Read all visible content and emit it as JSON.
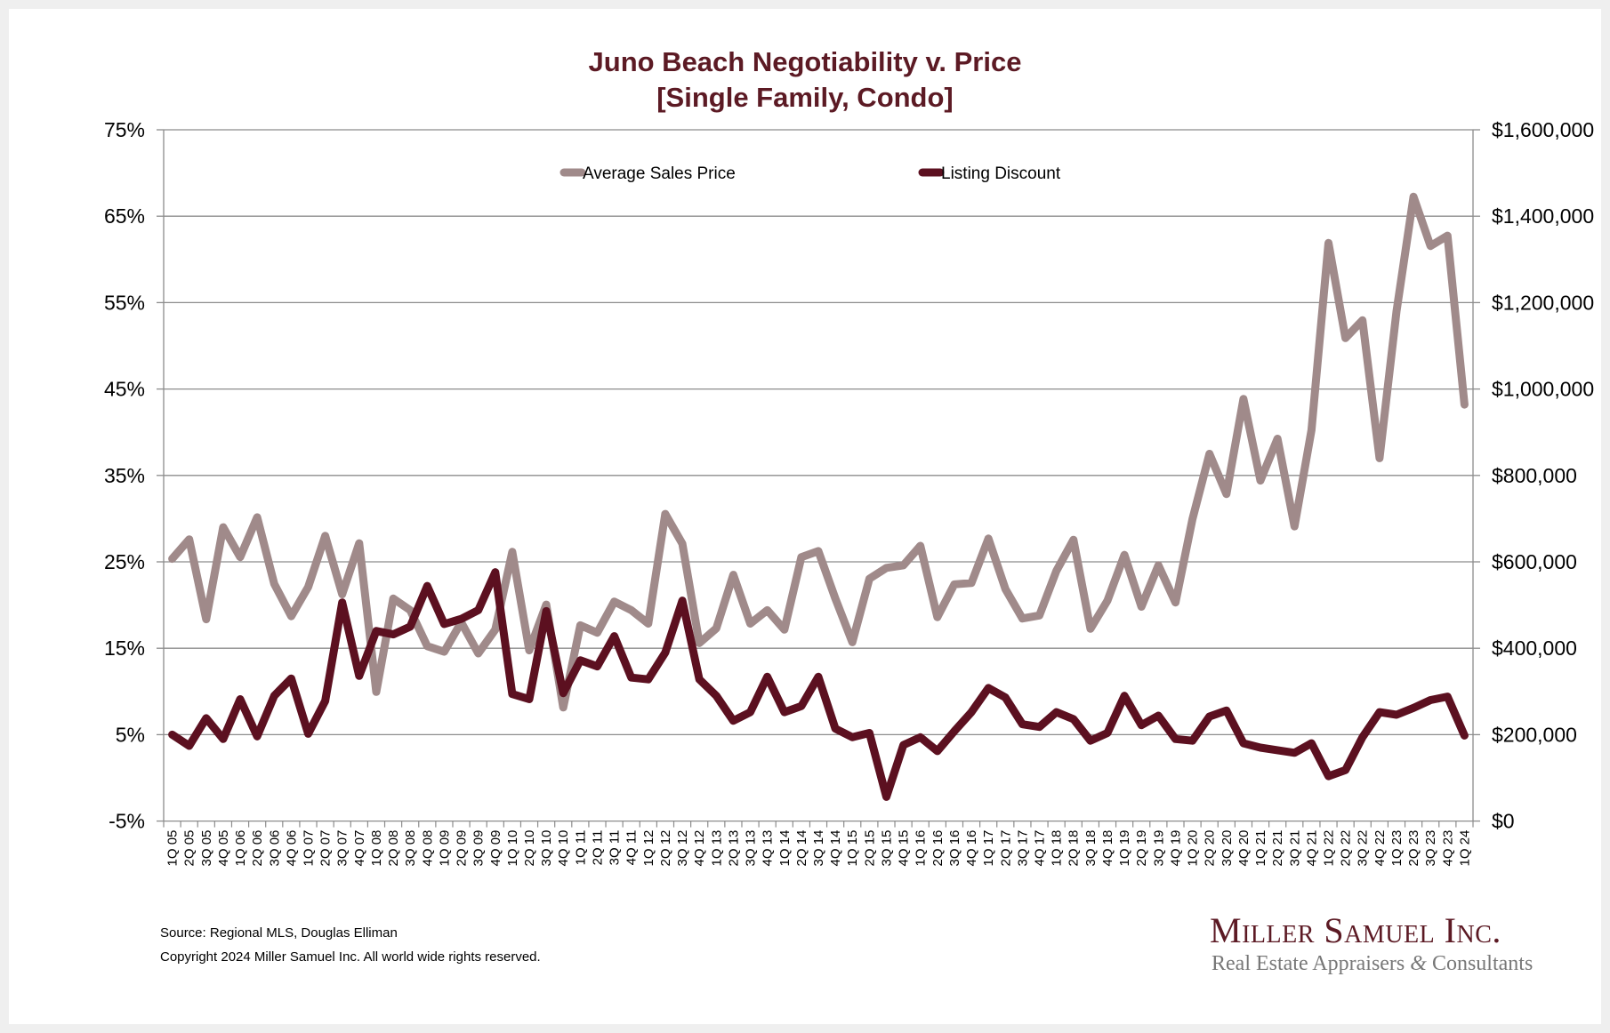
{
  "chart_data": {
    "type": "line",
    "title": "Juno Beach Negotiability v. Price",
    "subtitle": "[Single Family, Condo]",
    "xlabel": "",
    "ylabel_left": "",
    "ylabel_right": "",
    "categories": [
      "1Q 05",
      "2Q 05",
      "3Q 05",
      "4Q 05",
      "1Q 06",
      "2Q 06",
      "3Q 06",
      "4Q 06",
      "1Q 07",
      "2Q 07",
      "3Q 07",
      "4Q 07",
      "1Q 08",
      "2Q 08",
      "3Q 08",
      "4Q 08",
      "1Q 09",
      "2Q 09",
      "3Q 09",
      "4Q 09",
      "1Q 10",
      "2Q 10",
      "3Q 10",
      "4Q 10",
      "1Q 11",
      "2Q 11",
      "3Q 11",
      "4Q 11",
      "1Q 12",
      "2Q 12",
      "3Q 12",
      "4Q 12",
      "1Q 13",
      "2Q 13",
      "3Q 13",
      "4Q 13",
      "1Q 14",
      "2Q 14",
      "3Q 14",
      "4Q 14",
      "1Q 15",
      "2Q 15",
      "3Q 15",
      "4Q 15",
      "1Q 16",
      "2Q 16",
      "3Q 16",
      "4Q 16",
      "1Q 17",
      "2Q 17",
      "3Q 17",
      "4Q 17",
      "1Q 18",
      "2Q 18",
      "3Q 18",
      "4Q 18",
      "1Q 19",
      "2Q 19",
      "3Q 19",
      "4Q 19",
      "1Q 20",
      "2Q 20",
      "3Q 20",
      "4Q 20",
      "1Q 21",
      "2Q 21",
      "3Q 21",
      "4Q 21",
      "1Q 22",
      "2Q 22",
      "3Q 22",
      "4Q 22",
      "1Q 23",
      "2Q 23",
      "3Q 23",
      "4Q 23",
      "1Q 24"
    ],
    "series": [
      {
        "name": "Average Sales Price",
        "axis": "right",
        "color": "#a08a8a",
        "values": [
          607000,
          652000,
          467000,
          680000,
          611000,
          703000,
          549000,
          474000,
          542000,
          660000,
          525000,
          643000,
          299000,
          515000,
          488000,
          405000,
          392000,
          460000,
          388000,
          443000,
          623000,
          395000,
          501000,
          263000,
          453000,
          436000,
          508000,
          488000,
          457000,
          711000,
          642000,
          412000,
          446000,
          570000,
          457000,
          488000,
          443000,
          611000,
          625000,
          515000,
          414000,
          561000,
          586000,
          592000,
          637000,
          472000,
          548000,
          551000,
          654000,
          537000,
          469000,
          476000,
          579000,
          651000,
          445000,
          510000,
          616000,
          496000,
          592000,
          506000,
          699000,
          850000,
          757000,
          977000,
          788000,
          885000,
          682000,
          905000,
          1338000,
          1118000,
          1159000,
          840000,
          1180000,
          1445000,
          1331000,
          1355000,
          964000
        ]
      },
      {
        "name": "Listing Discount",
        "axis": "left",
        "color": "#5c1020",
        "values": [
          5.0,
          3.7,
          6.9,
          4.5,
          9.1,
          4.8,
          9.5,
          11.5,
          5.1,
          8.9,
          20.3,
          11.8,
          17.0,
          16.6,
          17.5,
          22.2,
          17.8,
          18.4,
          19.4,
          23.8,
          9.7,
          9.1,
          19.3,
          9.8,
          13.6,
          12.9,
          16.4,
          11.6,
          11.4,
          14.5,
          20.5,
          11.4,
          9.5,
          6.6,
          7.6,
          11.7,
          7.6,
          8.3,
          11.7,
          5.7,
          4.7,
          5.2,
          -2.2,
          3.8,
          4.7,
          3.1,
          5.4,
          7.6,
          10.4,
          9.3,
          6.2,
          5.9,
          7.6,
          6.8,
          4.3,
          5.2,
          9.5,
          6.1,
          7.2,
          4.5,
          4.3,
          7.1,
          7.8,
          4.0,
          3.5,
          3.2,
          2.9,
          4.0,
          0.2,
          0.9,
          4.7,
          7.6,
          7.3,
          8.1,
          9.0,
          9.4,
          4.9
        ]
      }
    ],
    "y_left": {
      "range": [
        -5,
        75
      ],
      "ticks": [
        -5,
        5,
        15,
        25,
        35,
        45,
        55,
        65,
        75
      ],
      "tick_labels": [
        "-5%",
        "5%",
        "15%",
        "25%",
        "35%",
        "45%",
        "55%",
        "65%",
        "75%"
      ]
    },
    "y_right": {
      "range": [
        0,
        1600000
      ],
      "ticks": [
        0,
        200000,
        400000,
        600000,
        800000,
        1000000,
        1200000,
        1400000,
        1600000
      ],
      "tick_labels": [
        "$0",
        "$200,000",
        "$400,000",
        "$600,000",
        "$800,000",
        "$1,000,000",
        "$1,200,000",
        "$1,400,000",
        "$1,600,000"
      ]
    },
    "grid": true,
    "legend": {
      "placement": "top-center",
      "entries": [
        "Average Sales Price",
        "Listing Discount"
      ]
    }
  },
  "footer": {
    "source": "Source: Regional MLS, Douglas Elliman",
    "copyright": "Copyright 2024 Miller Samuel Inc.  All world wide rights reserved."
  },
  "logo": {
    "name": "Miller Samuel Inc.",
    "tagline_part1": "Real Estate Appraisers ",
    "tagline_amp": "&",
    "tagline_part2": " Consultants"
  },
  "colors": {
    "title": "#5c1a24",
    "grid": "#8c8c8c",
    "axis": "#8c8c8c"
  }
}
